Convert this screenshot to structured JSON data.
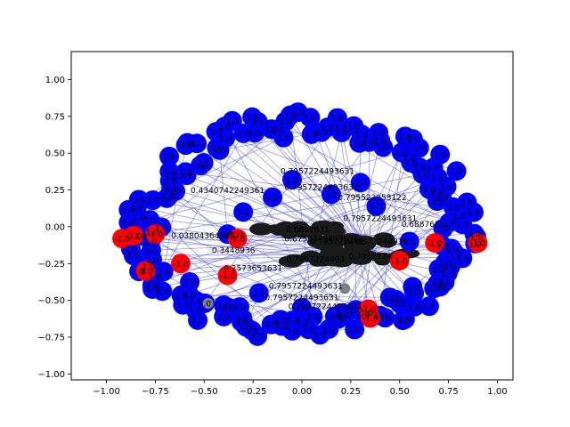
{
  "chart_data": {
    "type": "network-graph",
    "xlim": [
      -1.18,
      1.08
    ],
    "ylim": [
      -1.04,
      1.19
    ],
    "x_ticks": [
      {
        "value": -1.0,
        "label": "−1.00"
      },
      {
        "value": -0.75,
        "label": "−0.75"
      },
      {
        "value": -0.5,
        "label": "−0.50"
      },
      {
        "value": -0.25,
        "label": "−0.25"
      },
      {
        "value": 0.0,
        "label": "0.00"
      },
      {
        "value": 0.25,
        "label": "0.25"
      },
      {
        "value": 0.5,
        "label": "0.50"
      },
      {
        "value": 0.75,
        "label": "0.75"
      },
      {
        "value": 1.0,
        "label": "1.00"
      }
    ],
    "y_ticks": [
      {
        "value": 1.0,
        "label": "1.00"
      },
      {
        "value": 0.75,
        "label": "0.75"
      },
      {
        "value": 0.5,
        "label": "0.50"
      },
      {
        "value": 0.25,
        "label": "0.25"
      },
      {
        "value": 0.0,
        "label": "0.00"
      },
      {
        "value": -0.25,
        "label": "−0.25"
      },
      {
        "value": -0.5,
        "label": "−0.50"
      },
      {
        "value": -0.75,
        "label": "−0.75"
      },
      {
        "value": -1.0,
        "label": "−1.00"
      }
    ],
    "colors": {
      "positive_node": "#0000ff",
      "negative_node": "#ff0000",
      "neutral_node": "#808080",
      "edge": "#4444dd"
    },
    "hubs": [
      {
        "id": "hub-a",
        "x": 0.28,
        "y": -0.1
      },
      {
        "id": "hub-b",
        "x": 0.12,
        "y": -0.22
      },
      {
        "id": "hub-c",
        "x": 0.35,
        "y": -0.2
      },
      {
        "id": "hub-d",
        "x": -0.02,
        "y": -0.02
      }
    ],
    "blue_ring": {
      "count": 150,
      "center": [
        0.0,
        0.0
      ],
      "rx": 0.86,
      "ry": 0.74,
      "label": "1.0"
    },
    "inner_blue_nodes": [
      {
        "x": -0.05,
        "y": 0.32,
        "label": "1.0"
      },
      {
        "x": -0.3,
        "y": 0.1,
        "label": "1.0"
      },
      {
        "x": 0.15,
        "y": 0.22,
        "label": "1.0"
      },
      {
        "x": 0.38,
        "y": 0.14,
        "label": "1.0"
      },
      {
        "x": -0.38,
        "y": -0.05,
        "label": "1.0"
      },
      {
        "x": 0.0,
        "y": -0.55,
        "label": "1.0"
      },
      {
        "x": 0.22,
        "y": -0.6,
        "label": "1.0"
      },
      {
        "x": 0.45,
        "y": -0.48,
        "label": "1.0"
      },
      {
        "x": -0.22,
        "y": -0.45,
        "label": "1.0"
      },
      {
        "x": 0.55,
        "y": -0.1,
        "label": "1.0"
      },
      {
        "x": -0.15,
        "y": 0.2,
        "label": "1.0"
      },
      {
        "x": 0.3,
        "y": 0.3,
        "label": "1.0"
      }
    ],
    "red_nodes": [
      {
        "x": -0.92,
        "y": -0.08,
        "label": "-1.0"
      },
      {
        "x": -0.86,
        "y": -0.06,
        "label": "-1.0"
      },
      {
        "x": -0.75,
        "y": -0.05,
        "label": "-1.0"
      },
      {
        "x": -0.8,
        "y": -0.3,
        "label": "-1.0"
      },
      {
        "x": -0.62,
        "y": -0.25,
        "label": "-1.0"
      },
      {
        "x": -0.33,
        "y": -0.08,
        "label": "-1.0"
      },
      {
        "x": -0.38,
        "y": -0.33,
        "label": "-1.0"
      },
      {
        "x": 0.34,
        "y": -0.56,
        "label": "-1.0"
      },
      {
        "x": 0.35,
        "y": -0.62,
        "label": "-1.0"
      },
      {
        "x": 0.5,
        "y": -0.23,
        "label": "-1.0"
      },
      {
        "x": 0.68,
        "y": -0.11,
        "label": "-1.0"
      },
      {
        "x": 0.9,
        "y": -0.11,
        "label": "-1.0"
      }
    ],
    "gray_nodes": [
      {
        "x": -0.48,
        "y": -0.52
      },
      {
        "x": 0.22,
        "y": -0.42
      }
    ],
    "edge_labels": [
      {
        "x": 0.08,
        "y": 0.36,
        "text": "0.7957224493631"
      },
      {
        "x": 0.1,
        "y": 0.25,
        "text": "0.7957224493631"
      },
      {
        "x": -0.38,
        "y": 0.23,
        "text": "0.4340742249361"
      },
      {
        "x": 0.36,
        "y": 0.18,
        "text": "0.795522853122"
      },
      {
        "x": 0.4,
        "y": 0.04,
        "text": "0.7957224493631"
      },
      {
        "x": -0.48,
        "y": -0.08,
        "text": "0.0380436498575"
      },
      {
        "x": -0.35,
        "y": -0.18,
        "text": "0.3448936"
      },
      {
        "x": -0.25,
        "y": -0.3,
        "text": "0.2573653631"
      },
      {
        "x": 0.02,
        "y": -0.42,
        "text": "0.7957224493631"
      },
      {
        "x": 0.0,
        "y": -0.5,
        "text": "0.7957224493631"
      },
      {
        "x": 0.12,
        "y": -0.56,
        "text": "0.7957224493631"
      },
      {
        "x": 0.1,
        "y": -0.1,
        "text": "0.6759349493631"
      },
      {
        "x": 0.62,
        "y": 0.0,
        "text": "0.6887631"
      }
    ],
    "hub_labels": [
      "0.795722449",
      "0.7957224493",
      "0.7957224",
      "0.6887631",
      "0.79572244936"
    ]
  }
}
